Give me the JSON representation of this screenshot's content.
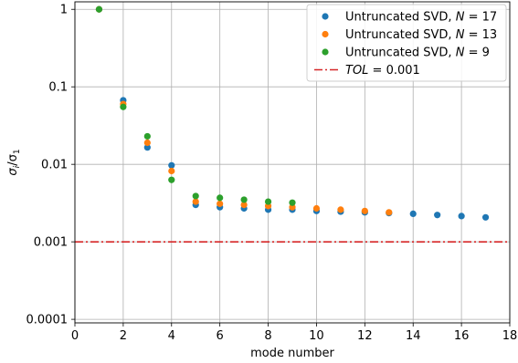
{
  "chart_data": {
    "type": "scatter",
    "xlabel": "mode number",
    "ylabel": "σ_i/σ_1",
    "xlim": [
      0,
      18
    ],
    "ylim": [
      9e-05,
      1.25
    ],
    "yscale": "log",
    "grid": true,
    "legend_position": "top-right",
    "x_ticks": [
      0,
      2,
      4,
      6,
      8,
      10,
      12,
      14,
      16,
      18
    ],
    "x_tick_labels": [
      "0",
      "2",
      "4",
      "6",
      "8",
      "10",
      "12",
      "14",
      "16",
      "18"
    ],
    "y_ticks": [
      0.0001,
      0.001,
      0.01,
      0.1,
      1
    ],
    "y_tick_labels": [
      "0.0001",
      "0.001",
      "0.01",
      "0.1",
      "1"
    ],
    "series": [
      {
        "name": "Untruncated SVD, N = 17",
        "legend_prefix": "Untruncated SVD, ",
        "legend_var": "N",
        "legend_suffix": " = 17",
        "color": "#1f77b4",
        "x": [
          1,
          2,
          3,
          4,
          5,
          6,
          7,
          8,
          9,
          10,
          11,
          12,
          13,
          14,
          15,
          16,
          17
        ],
        "y": [
          1,
          0.067,
          0.0165,
          0.0097,
          0.003,
          0.0028,
          0.0027,
          0.0026,
          0.0026,
          0.0025,
          0.00245,
          0.0024,
          0.00235,
          0.0023,
          0.00222,
          0.00215,
          0.00207
        ]
      },
      {
        "name": "Untruncated SVD, N = 13",
        "legend_prefix": "Untruncated SVD, ",
        "legend_var": "N",
        "legend_suffix": " = 13",
        "color": "#ff7f0e",
        "x": [
          1,
          2,
          3,
          4,
          5,
          6,
          7,
          8,
          9,
          10,
          11,
          12,
          13
        ],
        "y": [
          1,
          0.06,
          0.019,
          0.0082,
          0.0033,
          0.0031,
          0.003,
          0.0029,
          0.0028,
          0.0027,
          0.0026,
          0.0025,
          0.0024
        ]
      },
      {
        "name": "Untruncated SVD, N = 9",
        "legend_prefix": "Untruncated SVD, ",
        "legend_var": "N",
        "legend_suffix": " = 9",
        "color": "#2ca02c",
        "x": [
          1,
          2,
          3,
          4,
          5,
          6,
          7,
          8,
          9
        ],
        "y": [
          1,
          0.055,
          0.023,
          0.0063,
          0.0039,
          0.0037,
          0.0035,
          0.0033,
          0.0032
        ]
      }
    ],
    "reference_line": {
      "name": "TOL = 0.001",
      "legend_var": "TOL",
      "legend_suffix": " = 0.001",
      "value": 0.001,
      "color": "#d62728",
      "style": "dash-dot"
    }
  }
}
